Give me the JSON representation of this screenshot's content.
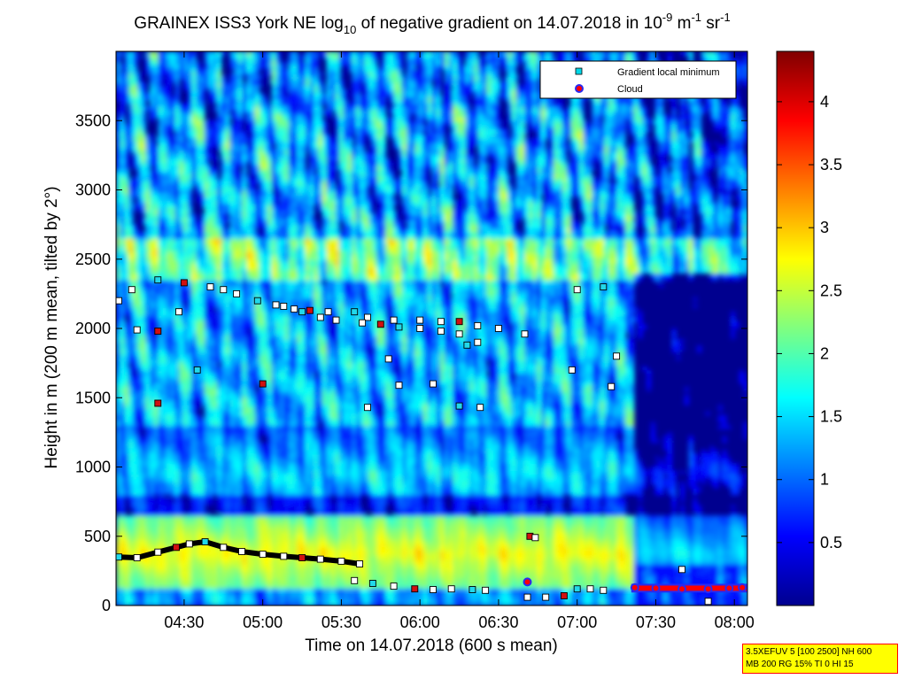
{
  "chart_data": {
    "type": "heatmap",
    "title": {
      "pre": "GRAINEX ISS3 York NE log",
      "sub": "10",
      "mid": " of negative gradient on 14.07.2018 in 10",
      "sup1": "-9",
      "mid2": " m",
      "sup2": "-1",
      "mid3": " sr",
      "sup3": "-1"
    },
    "xlabel": "Time on 14.07.2018 (600 s mean)",
    "ylabel": "Height in m (200 m mean, tilted by 2°)",
    "xlim": [
      "04:04",
      "08:05"
    ],
    "ylim": [
      0,
      4000
    ],
    "x_ticks": [
      "04:30",
      "05:00",
      "05:30",
      "06:00",
      "06:30",
      "07:00",
      "07:30",
      "08:00"
    ],
    "y_ticks": [
      0,
      500,
      1000,
      1500,
      2000,
      2500,
      3000,
      3500
    ],
    "colorbar": {
      "range": [
        0,
        4.4
      ],
      "ticks": [
        "0.5",
        "1",
        "1.5",
        "2",
        "2.5",
        "3",
        "3.5",
        "4"
      ],
      "colormap": "jet"
    },
    "legend": {
      "placement": "top-right",
      "entries": [
        "Gradient local minimum",
        "Cloud"
      ]
    },
    "series": [
      {
        "name": "Gradient local minimum",
        "marker": "square",
        "x": [
          "04:05",
          "04:12",
          "04:20",
          "04:27",
          "04:32",
          "04:38",
          "04:45",
          "04:52",
          "05:00",
          "05:08",
          "05:15",
          "05:22",
          "05:30",
          "05:37",
          "05:35",
          "05:42",
          "05:50",
          "05:58",
          "06:05",
          "06:12",
          "06:20",
          "06:25",
          "06:41",
          "06:48",
          "06:55",
          "07:00",
          "07:05",
          "07:10",
          "04:05",
          "04:10",
          "04:20",
          "04:30",
          "04:40",
          "04:45",
          "04:50",
          "04:58",
          "05:05",
          "05:12",
          "05:18",
          "05:25",
          "05:35",
          "05:40",
          "05:50",
          "06:00",
          "06:08",
          "06:15",
          "06:22",
          "06:30",
          "06:40",
          "07:00",
          "07:10",
          "04:12",
          "04:20",
          "04:28",
          "05:08",
          "05:15",
          "05:22",
          "05:28",
          "05:38",
          "05:45",
          "05:52",
          "06:00",
          "06:08",
          "06:15",
          "06:22",
          "04:35",
          "05:00",
          "05:40",
          "05:52",
          "06:05",
          "06:15",
          "06:58",
          "07:13",
          "04:20",
          "05:48",
          "06:18",
          "06:23",
          "07:15",
          "07:50",
          "07:40",
          "06:42",
          "06:44"
        ],
        "y": [
          350,
          345,
          385,
          420,
          445,
          460,
          420,
          390,
          370,
          355,
          345,
          335,
          320,
          300,
          180,
          160,
          140,
          120,
          115,
          120,
          115,
          110,
          60,
          60,
          70,
          120,
          120,
          110,
          2200,
          2280,
          2350,
          2330,
          2300,
          2280,
          2250,
          2200,
          2170,
          2140,
          2130,
          2120,
          2120,
          2080,
          2060,
          2060,
          2050,
          2050,
          2020,
          2000,
          1960,
          2280,
          2300,
          1990,
          1980,
          2120,
          2160,
          2120,
          2080,
          2060,
          2040,
          2030,
          2010,
          2000,
          1980,
          1960,
          1900,
          1700,
          1600,
          1430,
          1590,
          1600,
          1440,
          1700,
          1580,
          1460,
          1780,
          1880,
          1430,
          1800,
          30,
          260,
          500,
          490
        ]
      },
      {
        "name": "Cloud",
        "marker": "circle",
        "x": [
          "06:41",
          "07:22",
          "07:30",
          "07:40",
          "07:50",
          "07:58",
          "08:03"
        ],
        "y": [
          170,
          130,
          125,
          120,
          120,
          125,
          130
        ]
      }
    ]
  },
  "infobox": {
    "line1": "3.5XEFUV 5 [100 2500] NH 600",
    "line2": "MB 200 RG 15% TI 0 HI 15"
  }
}
